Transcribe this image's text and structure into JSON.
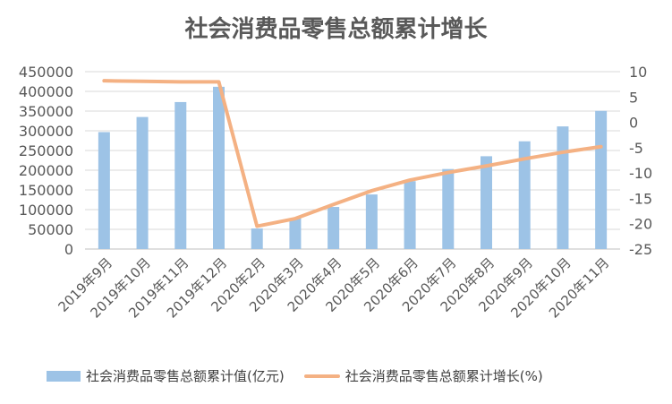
{
  "chart_data": {
    "type": "bar+line",
    "title": "社会消费品零售总额累计增长",
    "categories": [
      "2019年9月",
      "2019年10月",
      "2019年11月",
      "2019年12月",
      "2020年2月",
      "2020年3月",
      "2020年4月",
      "2020年5月",
      "2020年6月",
      "2020年7月",
      "2020年8月",
      "2020年9月",
      "2020年10月",
      "2020年11月"
    ],
    "series": [
      {
        "name": "社会消费品零售总额累计值(亿元)",
        "type": "bar",
        "axis": "left",
        "color": "#9DC3E6",
        "values": [
          296674,
          334965,
          372872,
          411649,
          52130,
          78580,
          106758,
          138464,
          172256,
          203003,
          235450,
          273324,
          311114,
          350553
        ]
      },
      {
        "name": "社会消费品零售总额累计增长(%)",
        "type": "line",
        "axis": "right",
        "color": "#F4B183",
        "values": [
          8.2,
          8.1,
          8.0,
          8.0,
          -20.5,
          -19.0,
          -16.2,
          -13.5,
          -11.4,
          -9.9,
          -8.6,
          -7.2,
          -5.9,
          -4.8
        ]
      }
    ],
    "y_left": {
      "min": 0,
      "max": 450000,
      "step": 50000,
      "ticks": [
        "0",
        "50000",
        "100000",
        "150000",
        "200000",
        "250000",
        "300000",
        "350000",
        "400000",
        "450000"
      ]
    },
    "y_right": {
      "min": -25,
      "max": 10,
      "step": 5,
      "ticks": [
        "-25",
        "-20",
        "-15",
        "-10",
        "-5",
        "0",
        "5",
        "10"
      ]
    },
    "grid": true,
    "legend_position": "bottom"
  }
}
